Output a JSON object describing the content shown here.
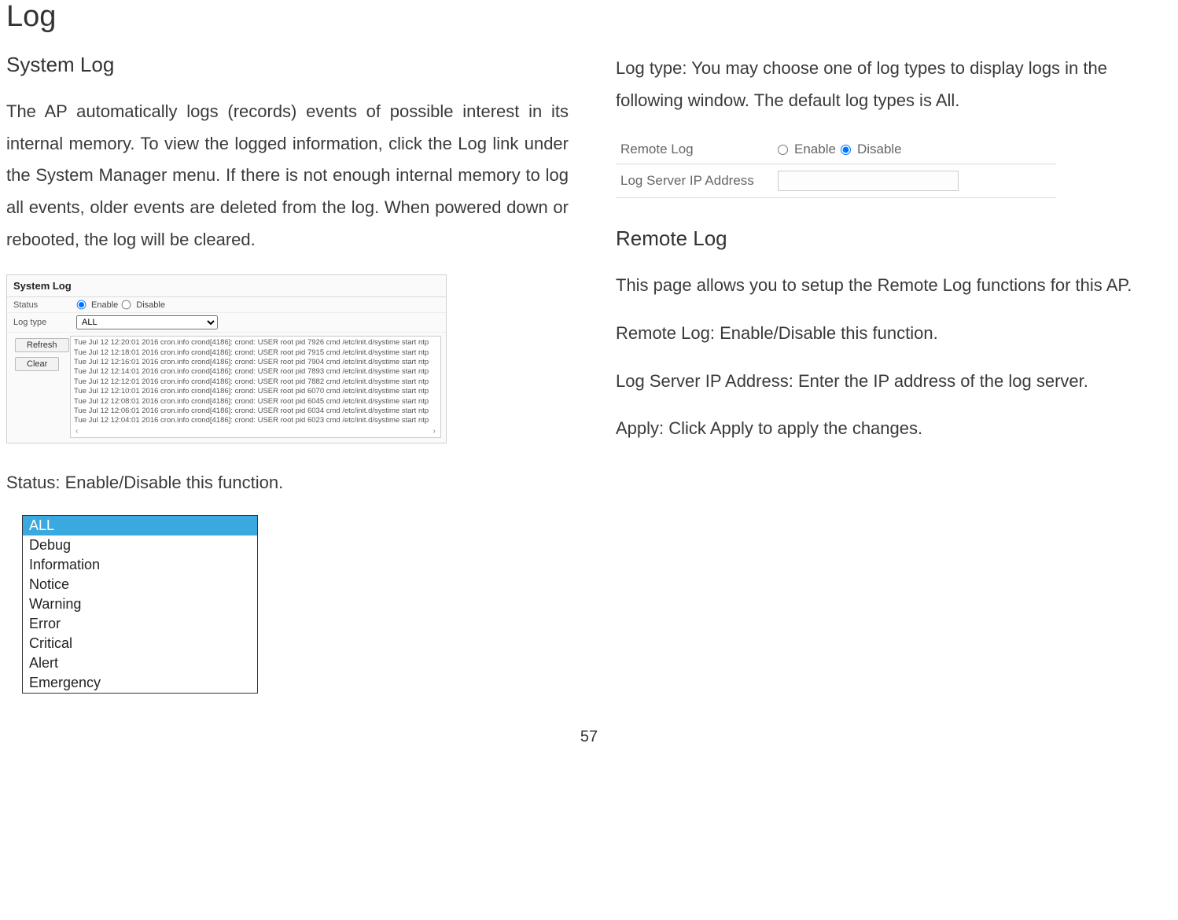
{
  "page": {
    "main_title": "Log",
    "page_number": "57"
  },
  "left": {
    "system_log_title": "System Log",
    "system_log_desc": "The AP automatically logs (records) events of possible interest in its internal memory. To view the logged information, click the Log link under the System Manager menu. If there is not enough internal memory to log all events, older events are deleted from the log. When powered down or rebooted, the log will be cleared.",
    "status_line": "Status: Enable/Disable this function."
  },
  "syslog": {
    "header": "System Log",
    "status_label": "Status",
    "enable": "Enable",
    "disable": "Disable",
    "logtype_label": "Log type",
    "logtype_value": "ALL",
    "refresh": "Refresh",
    "clear": "Clear",
    "lines": [
      "Tue Jul 12 12:20:01 2016 cron.info crond[4186]: crond: USER root pid 7926 cmd /etc/init.d/systime start ntp",
      "Tue Jul 12 12:18:01 2016 cron.info crond[4186]: crond: USER root pid 7915 cmd /etc/init.d/systime start ntp",
      "Tue Jul 12 12:16:01 2016 cron.info crond[4186]: crond: USER root pid 7904 cmd /etc/init.d/systime start ntp",
      "Tue Jul 12 12:14:01 2016 cron.info crond[4186]: crond: USER root pid 7893 cmd /etc/init.d/systime start ntp",
      "Tue Jul 12 12:12:01 2016 cron.info crond[4186]: crond: USER root pid 7882 cmd /etc/init.d/systime start ntp",
      "Tue Jul 12 12:10:01 2016 cron.info crond[4186]: crond: USER root pid 6070 cmd /etc/init.d/systime start ntp",
      "Tue Jul 12 12:08:01 2016 cron.info crond[4186]: crond: USER root pid 6045 cmd /etc/init.d/systime start ntp",
      "Tue Jul 12 12:06:01 2016 cron.info crond[4186]: crond: USER root pid 6034 cmd /etc/init.d/systime start ntp",
      "Tue Jul 12 12:04:01 2016 cron.info crond[4186]: crond: USER root pid 6023 cmd /etc/init.d/systime start ntp"
    ]
  },
  "logtype_options": {
    "items": [
      "ALL",
      "Debug",
      "Information",
      "Notice",
      "Warning",
      "Error",
      "Critical",
      "Alert",
      "Emergency"
    ]
  },
  "right": {
    "logtype_desc": "Log type: You may choose one of log types to display logs in the following window. The default log types is All.",
    "remote_log_title": "Remote Log",
    "remote_log_desc": "This page allows you to setup the Remote Log functions for this AP.",
    "remote_log_line": "Remote Log: Enable/Disable this function.",
    "logserver_line": "Log Server IP Address: Enter the IP address of the log server.",
    "apply_line": "Apply: Click Apply to apply the changes."
  },
  "remotelog": {
    "label_remote": "Remote Log",
    "label_ip": "Log Server IP Address",
    "enable": "Enable",
    "disable": "Disable"
  }
}
